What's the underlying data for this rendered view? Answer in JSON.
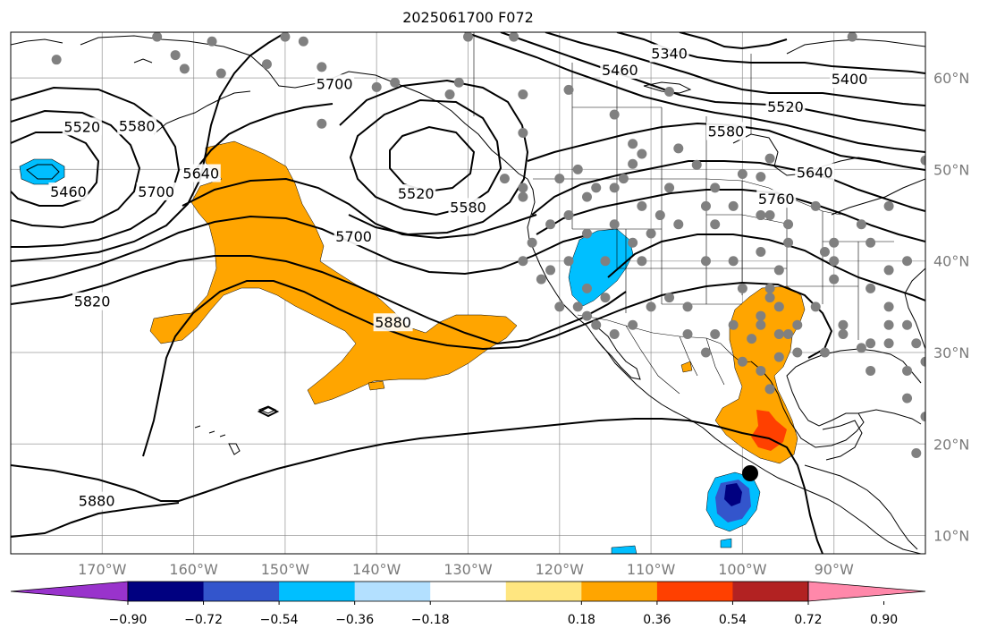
{
  "title": "2025061700 F072",
  "projection": "PlateCarree",
  "extent": {
    "lon_min": -180,
    "lon_max": -80,
    "lat_min": 8,
    "lat_max": 65
  },
  "gridlines": true,
  "lon_labels": [
    "170°W",
    "160°W",
    "150°W",
    "140°W",
    "130°W",
    "120°W",
    "110°W",
    "100°W",
    "90°W"
  ],
  "lon_values": [
    -170,
    -160,
    -150,
    -140,
    -130,
    -120,
    -110,
    -100,
    -90
  ],
  "lat_labels": [
    "10°N",
    "20°N",
    "30°N",
    "40°N",
    "50°N",
    "60°N"
  ],
  "lat_values": [
    10,
    20,
    30,
    40,
    50,
    60
  ],
  "contour_labels": [
    {
      "text": "5340",
      "lon": -108,
      "lat": 62.7
    },
    {
      "text": "5400",
      "lon": -88.3,
      "lat": 59.9
    },
    {
      "text": "5460",
      "lon": -113.4,
      "lat": 60.9
    },
    {
      "text": "5520",
      "lon": -95.3,
      "lat": 56.9
    },
    {
      "text": "5580",
      "lon": -101.8,
      "lat": 54.2
    },
    {
      "text": "5640",
      "lon": -92.1,
      "lat": 49.7
    },
    {
      "text": "5700",
      "lon": -164.1,
      "lat": 47.6
    },
    {
      "text": "5760",
      "lon": -96.3,
      "lat": 46.8
    },
    {
      "text": "5520",
      "lon": -172.2,
      "lat": 54.7
    },
    {
      "text": "5580",
      "lon": -166.2,
      "lat": 54.8
    },
    {
      "text": "5460",
      "lon": -173.7,
      "lat": 47.6
    },
    {
      "text": "5640",
      "lon": -159.2,
      "lat": 49.6
    },
    {
      "text": "5700",
      "lon": -144.6,
      "lat": 59.4
    },
    {
      "text": "5520",
      "lon": -135.7,
      "lat": 47.4
    },
    {
      "text": "5580",
      "lon": -130,
      "lat": 45.9
    },
    {
      "text": "5700",
      "lon": -142.5,
      "lat": 42.7
    },
    {
      "text": "5820",
      "lon": -171.1,
      "lat": 35.6
    },
    {
      "text": "5880",
      "lon": -138.2,
      "lat": 33.3
    },
    {
      "text": "5880",
      "lon": -170.6,
      "lat": 13.8
    }
  ],
  "colorbar": {
    "labels": [
      "−0.90",
      "−0.72",
      "−0.54",
      "−0.36",
      "−0.18",
      "0.18",
      "0.36",
      "0.54",
      "0.72",
      "0.90"
    ],
    "levels": [
      -0.9,
      -0.72,
      -0.54,
      -0.36,
      -0.18,
      0.18,
      0.36,
      0.54,
      0.72,
      0.9
    ],
    "colors": [
      "#9933cc",
      "#000080",
      "#3355cc",
      "#00bfff",
      "#b3e0ff",
      "#ffffff",
      "#ffe680",
      "#ffa500",
      "#ff4000",
      "#b22222",
      "#ff88aa"
    ],
    "extend": "both"
  },
  "colors": {
    "positive_anomaly": "#ffa500",
    "strong_positive": "#ff4000",
    "negative_anomaly": "#00bfff",
    "strong_negative": "#000080",
    "station": "#808080",
    "contour": "#000000",
    "coast": "#000000",
    "grid": "#808080"
  },
  "stations": [
    [
      -175,
      62
    ],
    [
      -164,
      64.5
    ],
    [
      -158,
      64
    ],
    [
      -150,
      64.5
    ],
    [
      -148,
      64
    ],
    [
      -130,
      64.5
    ],
    [
      -125,
      64.5
    ],
    [
      -157,
      60.5
    ],
    [
      -138,
      59.5
    ],
    [
      -162,
      62.5
    ],
    [
      -152,
      61.5
    ],
    [
      -146,
      61.2
    ],
    [
      -131,
      59.5
    ],
    [
      -132,
      58.2
    ],
    [
      -124,
      58.2
    ],
    [
      -119,
      58.7
    ],
    [
      -108,
      58.5
    ],
    [
      -114,
      56
    ],
    [
      -124,
      54
    ],
    [
      -101,
      54.5
    ],
    [
      -97,
      51.2
    ],
    [
      -107,
      52.3
    ],
    [
      -112,
      52.8
    ],
    [
      -111,
      51.7
    ],
    [
      -112,
      50.6
    ],
    [
      -118,
      50
    ],
    [
      -120,
      49
    ],
    [
      -124,
      48
    ],
    [
      -117,
      47
    ],
    [
      -108,
      48
    ],
    [
      -103,
      48
    ],
    [
      -101,
      46
    ],
    [
      -97,
      45
    ],
    [
      -98,
      49.2
    ],
    [
      -100,
      49.5
    ],
    [
      -105,
      50.5
    ],
    [
      -88,
      64.5
    ],
    [
      -80,
      51
    ],
    [
      -86,
      42
    ],
    [
      -84,
      39
    ],
    [
      -84,
      35
    ],
    [
      -87,
      30.5
    ],
    [
      -91,
      30
    ],
    [
      -89,
      32
    ],
    [
      -84,
      33
    ],
    [
      -86,
      28
    ],
    [
      -81,
      31
    ],
    [
      -80,
      29
    ],
    [
      -80,
      23
    ],
    [
      -81,
      19
    ],
    [
      -82,
      25
    ],
    [
      -90,
      38
    ],
    [
      -90,
      40
    ],
    [
      -92,
      46
    ],
    [
      -98,
      45
    ],
    [
      -104,
      40
    ],
    [
      -110,
      43
    ],
    [
      -112,
      42
    ],
    [
      -117,
      43
    ],
    [
      -119,
      45
    ],
    [
      -121,
      44
    ],
    [
      -123,
      42
    ],
    [
      -124,
      40
    ],
    [
      -121,
      39
    ],
    [
      -117,
      37
    ],
    [
      -117,
      34
    ],
    [
      -115,
      36
    ],
    [
      -111,
      40
    ],
    [
      -109,
      45
    ],
    [
      -107,
      44
    ],
    [
      -103,
      44
    ],
    [
      -98,
      41
    ],
    [
      -96,
      39
    ],
    [
      -91,
      41
    ],
    [
      -87,
      44
    ],
    [
      -84,
      46
    ],
    [
      -95,
      42
    ],
    [
      -97,
      37
    ],
    [
      -100,
      37
    ],
    [
      -103,
      32
    ],
    [
      -106,
      32
    ],
    [
      -110,
      35
    ],
    [
      -106,
      35
    ],
    [
      -98,
      33
    ],
    [
      -97,
      36
    ],
    [
      -95,
      32
    ],
    [
      -94,
      30
    ],
    [
      -94,
      33
    ],
    [
      -92,
      35
    ],
    [
      -96,
      35
    ],
    [
      -98,
      34
    ],
    [
      -100,
      29
    ],
    [
      -98,
      28
    ],
    [
      -97,
      26
    ],
    [
      -101,
      33
    ],
    [
      -104,
      30
    ],
    [
      -108,
      36
    ],
    [
      -112,
      33
    ],
    [
      -114,
      32
    ],
    [
      -116,
      33
    ],
    [
      -118,
      35
    ],
    [
      -122,
      38
    ],
    [
      -120,
      35
    ],
    [
      -111,
      46
    ],
    [
      -114,
      48
    ],
    [
      -116,
      48
    ],
    [
      -101,
      40
    ],
    [
      -95,
      44
    ],
    [
      -90,
      42
    ],
    [
      -86,
      37
    ],
    [
      -82,
      40
    ],
    [
      -119,
      40
    ],
    [
      -115,
      40
    ],
    [
      -104,
      46
    ],
    [
      -113,
      49
    ],
    [
      -140,
      59
    ],
    [
      -161,
      61
    ],
    [
      -146,
      55
    ],
    [
      -126,
      49
    ],
    [
      -114,
      44
    ],
    [
      -124,
      47
    ],
    [
      -99,
      31.5
    ],
    [
      -96,
      29.5
    ],
    [
      -89,
      33
    ],
    [
      -86,
      31
    ],
    [
      -82,
      28
    ],
    [
      -84,
      31
    ],
    [
      -97,
      26
    ],
    [
      -82,
      33
    ],
    [
      -96,
      32
    ]
  ]
}
